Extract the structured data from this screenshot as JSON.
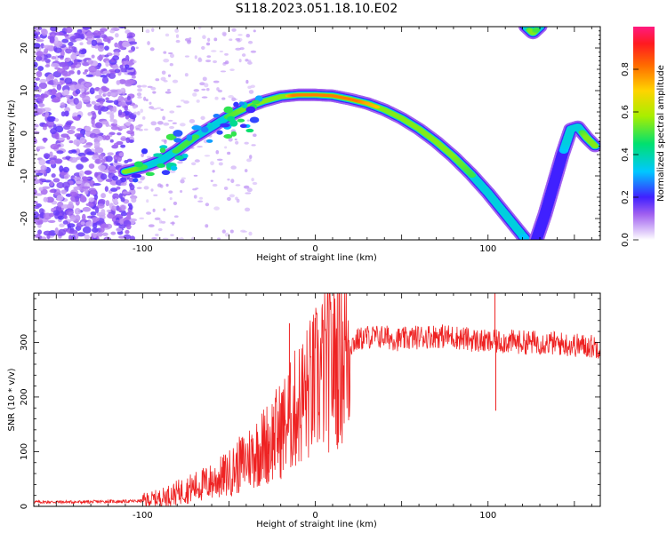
{
  "title": "S118.2023.051.18.10.E02",
  "chart_data": [
    {
      "type": "heatmap",
      "title": "S118.2023.051.18.10.E02",
      "xlabel": "Height of straight line (km)",
      "ylabel": "Frequency (Hz)",
      "xlim": [
        -163,
        165
      ],
      "ylim": [
        -25,
        25
      ],
      "xticks": [
        -100,
        0,
        100
      ],
      "yticks": [
        -20,
        -10,
        0,
        10,
        20
      ],
      "colorbar": {
        "label": "Normalized spectral amplitude",
        "range": [
          0,
          1
        ],
        "ticks": [
          0.0,
          0.2,
          0.4,
          0.6,
          0.8
        ]
      },
      "ridge_main": {
        "x": [
          -110,
          -100,
          -90,
          -80,
          -70,
          -60,
          -50,
          -40,
          -30,
          -20,
          -10,
          0,
          10,
          20,
          30,
          40,
          50,
          60,
          70,
          80,
          90,
          100,
          110,
          120,
          122
        ],
        "y": [
          -9,
          -8,
          -6.5,
          -4,
          -1,
          1.5,
          4,
          6,
          7.5,
          8.6,
          9,
          9,
          8.8,
          8,
          7,
          5.5,
          3.5,
          1,
          -2,
          -5.5,
          -9.5,
          -14,
          -19,
          -24,
          -25
        ],
        "amplitude": [
          0.65,
          0.5,
          0.45,
          0.5,
          0.5,
          0.45,
          0.5,
          0.55,
          0.6,
          0.65,
          0.85,
          0.95,
          0.95,
          0.85,
          0.75,
          0.7,
          0.65,
          0.6,
          0.6,
          0.55,
          0.5,
          0.45,
          0.4,
          0.35,
          0.3
        ]
      },
      "ridge_return": {
        "x": [
          128,
          133,
          138,
          143,
          148,
          152,
          157,
          162
        ],
        "y": [
          -25,
          -19,
          -12,
          -5,
          1,
          1.5,
          -1,
          -3
        ],
        "amplitude": [
          0.3,
          0.3,
          0.25,
          0.3,
          0.4,
          0.45,
          0.55,
          0.7
        ]
      },
      "ridge_top": {
        "x": [
          122,
          126,
          130
        ],
        "y": [
          25,
          23.5,
          25
        ],
        "amplitude": [
          0.4,
          0.6,
          0.4
        ]
      }
    },
    {
      "type": "line",
      "xlabel": "Height of straight line (km)",
      "ylabel": "SNR (10 * v/v)",
      "xlim": [
        -163,
        165
      ],
      "ylim": [
        0,
        390
      ],
      "xticks": [
        -100,
        0,
        100
      ],
      "yticks": [
        0,
        100,
        200,
        300
      ],
      "color": "#ee2222",
      "series": [
        {
          "x": [
            -163,
            -150,
            -140,
            -130,
            -120,
            -110,
            -100,
            -90,
            -80,
            -70,
            -60,
            -50,
            -40,
            -30,
            -20,
            -15,
            -10,
            -5,
            0,
            5,
            10,
            15,
            20,
            25,
            30,
            40,
            50,
            60,
            70,
            80,
            90,
            100,
            110,
            120,
            130,
            140,
            150,
            160,
            165
          ],
          "values": [
            8,
            8,
            8,
            8,
            9,
            9,
            10,
            15,
            25,
            35,
            45,
            60,
            85,
            110,
            140,
            160,
            185,
            205,
            225,
            250,
            265,
            280,
            295,
            305,
            310,
            310,
            305,
            310,
            312,
            310,
            305,
            300,
            302,
            300,
            300,
            298,
            295,
            293,
            292
          ]
        }
      ],
      "spikes": [
        {
          "x": -15,
          "y": 335
        },
        {
          "x": -27,
          "y": 45
        },
        {
          "x": 104,
          "y": 390
        },
        {
          "x": 104.5,
          "y": 175
        }
      ]
    }
  ]
}
